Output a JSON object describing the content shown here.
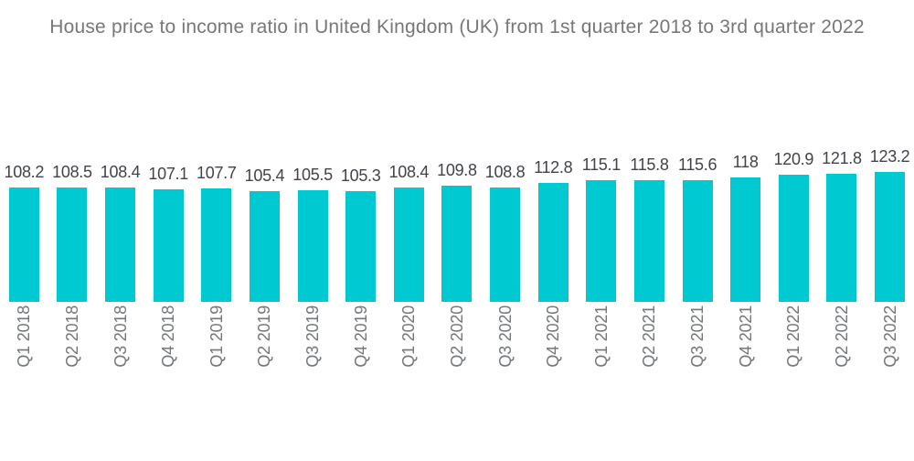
{
  "title": "House price to income ratio in United Kingdom (UK) from 1st quarter 2018 to 3rd quarter 2022",
  "chart_data": {
    "type": "bar",
    "title": "House price to income ratio in United Kingdom (UK) from 1st quarter 2018 to 3rd quarter 2022",
    "categories": [
      "Q1 2018",
      "Q2 2018",
      "Q3 2018",
      "Q4 2018",
      "Q1 2019",
      "Q2 2019",
      "Q3 2019",
      "Q4 2019",
      "Q1 2020",
      "Q2 2020",
      "Q3 2020",
      "Q4 2020",
      "Q1 2021",
      "Q2 2021",
      "Q3 2021",
      "Q4 2021",
      "Q1 2022",
      "Q2 2022",
      "Q3 2022"
    ],
    "values": [
      108.2,
      108.5,
      108.4,
      107.1,
      107.7,
      105.4,
      105.5,
      105.3,
      108.4,
      109.8,
      108.8,
      112.8,
      115.1,
      115.8,
      115.6,
      118,
      120.9,
      121.8,
      123.2
    ],
    "xlabel": "",
    "ylabel": "",
    "ylim": [
      0,
      123.2
    ],
    "grid": false,
    "legend": false,
    "value_labels_shown": true,
    "y_axis_shown": false,
    "bar_color": "#00C9D1",
    "value_label_color": "#404449",
    "category_label_color": "#73777a",
    "title_color": "#75787b"
  }
}
